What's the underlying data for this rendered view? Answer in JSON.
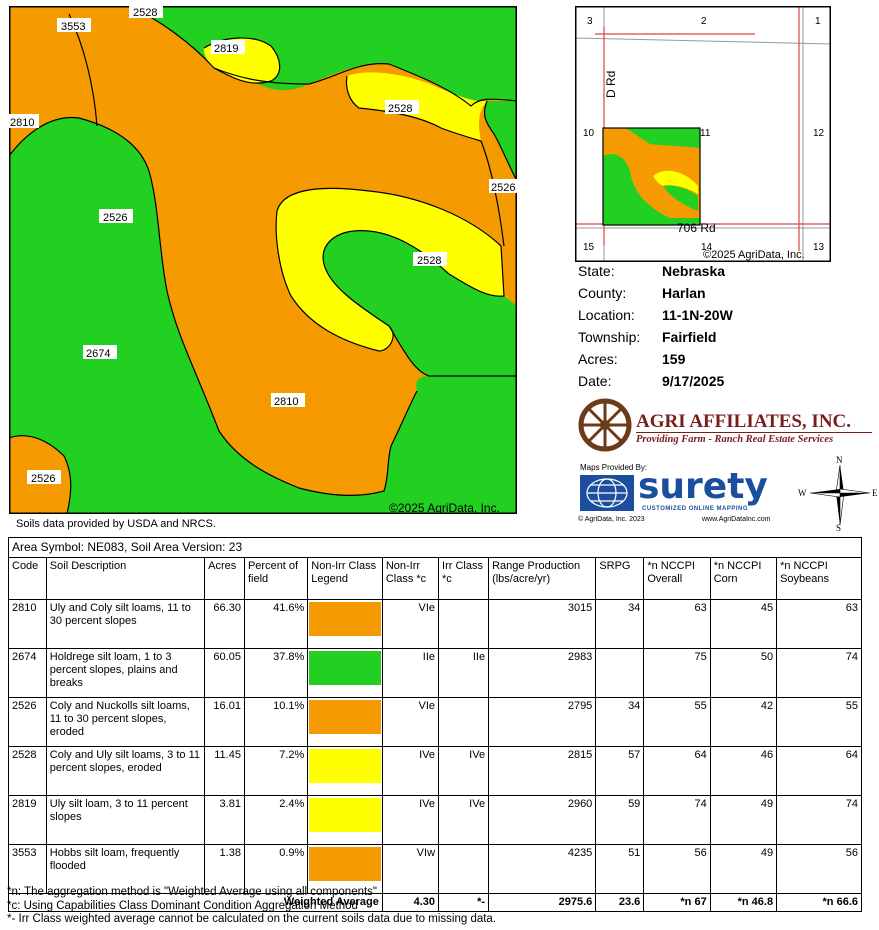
{
  "map": {
    "copyright": "©2025 AgriData, Inc.",
    "labels": [
      "3553",
      "2528",
      "2819",
      "2528",
      "2810",
      "2526",
      "2526",
      "2528",
      "2674",
      "2810",
      "2526"
    ]
  },
  "location_map": {
    "sections": [
      "3",
      "2",
      "1",
      "10",
      "11",
      "12",
      "15",
      "14",
      "13"
    ],
    "roads": [
      "D Rd",
      "706 Rd"
    ],
    "copyright": "©2025 AgriData, Inc."
  },
  "info": {
    "state_label": "State:",
    "state": "Nebraska",
    "county_label": "County:",
    "county": "Harlan",
    "location_label": "Location:",
    "location": "11-1N-20W",
    "township_label": "Township:",
    "township": "Fairfield",
    "acres_label": "Acres:",
    "acres": "159",
    "date_label": "Date:",
    "date": "9/17/2025"
  },
  "brand": {
    "name": "AGRI AFFILIATES, INC.",
    "tagline": "Providing Farm - Ranch Real Estate Services"
  },
  "surety": {
    "provided_by": "Maps Provided By:",
    "name": "surety",
    "sub": "CUSTOMIZED ONLINE MAPPING",
    "copy": "© AgriData, Inc. 2023",
    "url": "www.AgriDataInc.com"
  },
  "compass": {
    "n": "N",
    "s": "S",
    "e": "E",
    "w": "W"
  },
  "credit": "Soils data provided by USDA and NRCS.",
  "colors": {
    "orange": "#f59a00",
    "green": "#22d022",
    "yellow": "#ffff00"
  },
  "table": {
    "area": "Area Symbol: NE083, Soil Area Version: 23",
    "headers": [
      "Code",
      "Soil Description",
      "Acres",
      "Percent of field",
      "Non-Irr Class Legend",
      "Non-Irr Class *c",
      "Irr Class *c",
      "Range Production (lbs/acre/yr)",
      "SRPG",
      "*n NCCPI Overall",
      "*n NCCPI Corn",
      "*n NCCPI Soybeans"
    ],
    "rows": [
      {
        "code": "2810",
        "desc": "Uly and Coly silt loams, 11 to 30 percent slopes",
        "acres": "66.30",
        "pct": "41.6%",
        "color": "#f59a00",
        "nonirr": "VIe",
        "irr": "",
        "range": "3015",
        "srpg": "34",
        "overall": "63",
        "corn": "45",
        "soy": "63"
      },
      {
        "code": "2674",
        "desc": "Holdrege silt loam, 1 to 3 percent slopes, plains and breaks",
        "acres": "60.05",
        "pct": "37.8%",
        "color": "#22d022",
        "nonirr": "IIe",
        "irr": "IIe",
        "range": "2983",
        "srpg": "",
        "overall": "75",
        "corn": "50",
        "soy": "74"
      },
      {
        "code": "2526",
        "desc": "Coly and Nuckolls silt loams, 11 to 30 percent slopes, eroded",
        "acres": "16.01",
        "pct": "10.1%",
        "color": "#f59a00",
        "nonirr": "VIe",
        "irr": "",
        "range": "2795",
        "srpg": "34",
        "overall": "55",
        "corn": "42",
        "soy": "55"
      },
      {
        "code": "2528",
        "desc": "Coly and Uly silt loams, 3 to 11 percent slopes, eroded",
        "acres": "11.45",
        "pct": "7.2%",
        "color": "#ffff00",
        "nonirr": "IVe",
        "irr": "IVe",
        "range": "2815",
        "srpg": "57",
        "overall": "64",
        "corn": "46",
        "soy": "64"
      },
      {
        "code": "2819",
        "desc": "Uly silt loam, 3 to 11 percent slopes",
        "acres": "3.81",
        "pct": "2.4%",
        "color": "#ffff00",
        "nonirr": "IVe",
        "irr": "IVe",
        "range": "2960",
        "srpg": "59",
        "overall": "74",
        "corn": "49",
        "soy": "74"
      },
      {
        "code": "3553",
        "desc": "Hobbs silt loam, frequently flooded",
        "acres": "1.38",
        "pct": "0.9%",
        "color": "#f59a00",
        "nonirr": "VIw",
        "irr": "",
        "range": "4235",
        "srpg": "51",
        "overall": "56",
        "corn": "49",
        "soy": "56"
      }
    ],
    "weighted": {
      "label": "Weighted Average",
      "nonirr": "4.30",
      "irr": "*-",
      "range": "2975.6",
      "srpg": "23.6",
      "overall": "*n 67",
      "corn": "*n 46.8",
      "soy": "*n 66.6"
    }
  },
  "footnotes": [
    "*n: The aggregation method is \"Weighted Average using all components\"",
    "*c: Using Capabilities Class Dominant Condition Aggregation Method",
    "*- Irr Class weighted average cannot be calculated on the current soils data due to missing data."
  ]
}
